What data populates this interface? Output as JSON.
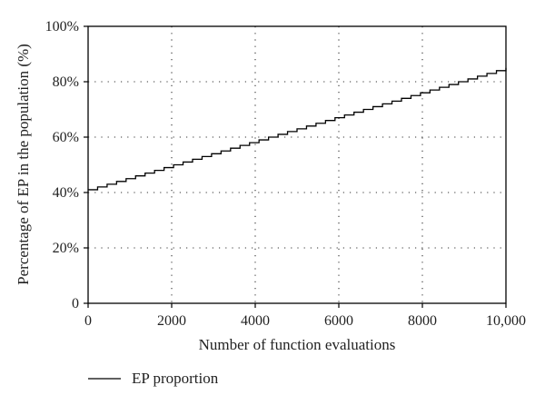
{
  "chart_data": {
    "type": "line",
    "line_style": "step",
    "xlabel": "Number of function evaluations",
    "ylabel": "Percentage of EP in the population (%)",
    "xlim": [
      0,
      10000
    ],
    "ylim": [
      0,
      100
    ],
    "x_ticks": [
      0,
      2000,
      4000,
      6000,
      8000,
      10000
    ],
    "x_tick_labels": [
      "0",
      "2000",
      "4000",
      "6000",
      "8000",
      "10,000"
    ],
    "y_ticks": [
      0,
      20,
      40,
      60,
      80,
      100
    ],
    "y_tick_labels": [
      "0",
      "20%",
      "40%",
      "60%",
      "80%",
      "100%"
    ],
    "grid": "dotted",
    "legend_position": "bottom-left",
    "series": [
      {
        "name": "EP proportion",
        "color": "#000000",
        "x_start": 0,
        "x_end": 10000,
        "y_start": 41,
        "y_end": 85,
        "step_count": 44
      }
    ]
  }
}
